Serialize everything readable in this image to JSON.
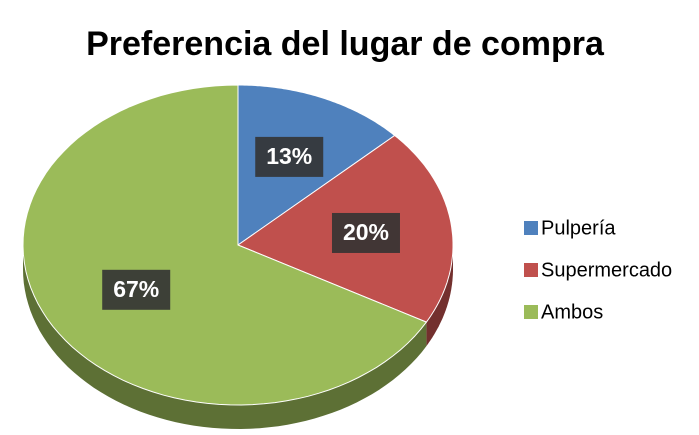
{
  "chart_data": {
    "type": "pie",
    "title": "Preferencia del lugar de compra",
    "categories": [
      "Pulpería",
      "Supermercado",
      "Ambos"
    ],
    "values": [
      13,
      20,
      67
    ],
    "value_labels": [
      "13%",
      "20%",
      "67%"
    ],
    "colors": [
      "#4f81bd",
      "#c0504d",
      "#9bbb59"
    ],
    "legend": "right"
  }
}
